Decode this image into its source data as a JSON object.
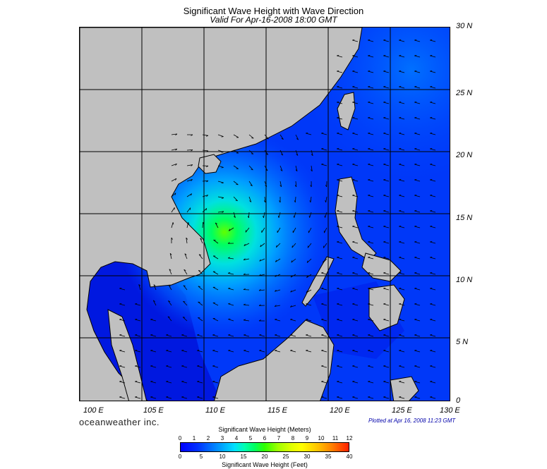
{
  "title": "Significant Wave Height with Wave Direction",
  "subtitle": "Valid For Apr-16-2008 18:00 GMT",
  "lat_labels": [
    "30 N",
    "25 N",
    "20 N",
    "15 N",
    "10 N",
    "5 N",
    "0"
  ],
  "lon_labels": [
    "100 E",
    "105 E",
    "110 E",
    "115 E",
    "120 E",
    "125 E",
    "130 E"
  ],
  "brand": "oceanweather inc.",
  "plotted": "Plotted at Apr 16, 2008 11:23 GMT",
  "colorbar": {
    "title_meters": "Significant Wave Height (Meters)",
    "title_feet": "Significant Wave Height (Feet)",
    "meters_ticks": [
      "0",
      "1",
      "2",
      "3",
      "4",
      "5",
      "6",
      "7",
      "8",
      "9",
      "10",
      "11",
      "12"
    ],
    "feet_ticks": [
      "0",
      "5",
      "10",
      "15",
      "20",
      "25",
      "30",
      "35",
      "40"
    ]
  },
  "colors": {
    "land": "#c0c0c0",
    "sea_low": "#0000ff",
    "sea_mid": "#0050ff",
    "peak": "#50ff00"
  },
  "map_data": {
    "lon_range": [
      99,
      130
    ],
    "lat_range": [
      0,
      30
    ],
    "storm_center": {
      "lon": 111,
      "lat": 14.5
    }
  }
}
